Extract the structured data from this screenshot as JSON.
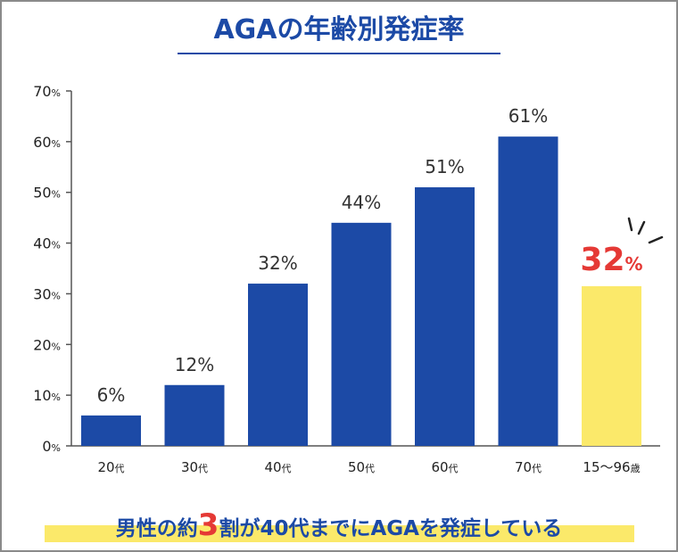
{
  "title": "AGAの年齢別発症率",
  "footer": {
    "prefix": "男性の約",
    "highlight_number": "3",
    "suffix": "割が40代までにAGAを発症している"
  },
  "colors": {
    "bar": "#1c4aa6",
    "highlight_bar": "#fbe96a",
    "highlight_label": "#e53935",
    "footer_highlight": "#fbe96a",
    "title": "#1c4aa6"
  },
  "chart_data": {
    "type": "bar",
    "title": "AGAの年齢別発症率",
    "xlabel": "",
    "ylabel": "",
    "ylim": [
      0,
      70
    ],
    "yticks": [
      0,
      10,
      20,
      30,
      40,
      50,
      60,
      70
    ],
    "ytick_unit": "%",
    "grid": false,
    "categories": [
      {
        "num": "20",
        "suffix": "代"
      },
      {
        "num": "30",
        "suffix": "代"
      },
      {
        "num": "40",
        "suffix": "代"
      },
      {
        "num": "50",
        "suffix": "代"
      },
      {
        "num": "60",
        "suffix": "代"
      },
      {
        "num": "70",
        "suffix": "代"
      },
      {
        "num": "15～96",
        "suffix": "歳"
      }
    ],
    "values": [
      6,
      12,
      32,
      44,
      51,
      61,
      31.5
    ],
    "data_labels": [
      "6%",
      "12%",
      "32%",
      "44%",
      "51%",
      "61%",
      "32%"
    ],
    "highlight_index": 6
  }
}
